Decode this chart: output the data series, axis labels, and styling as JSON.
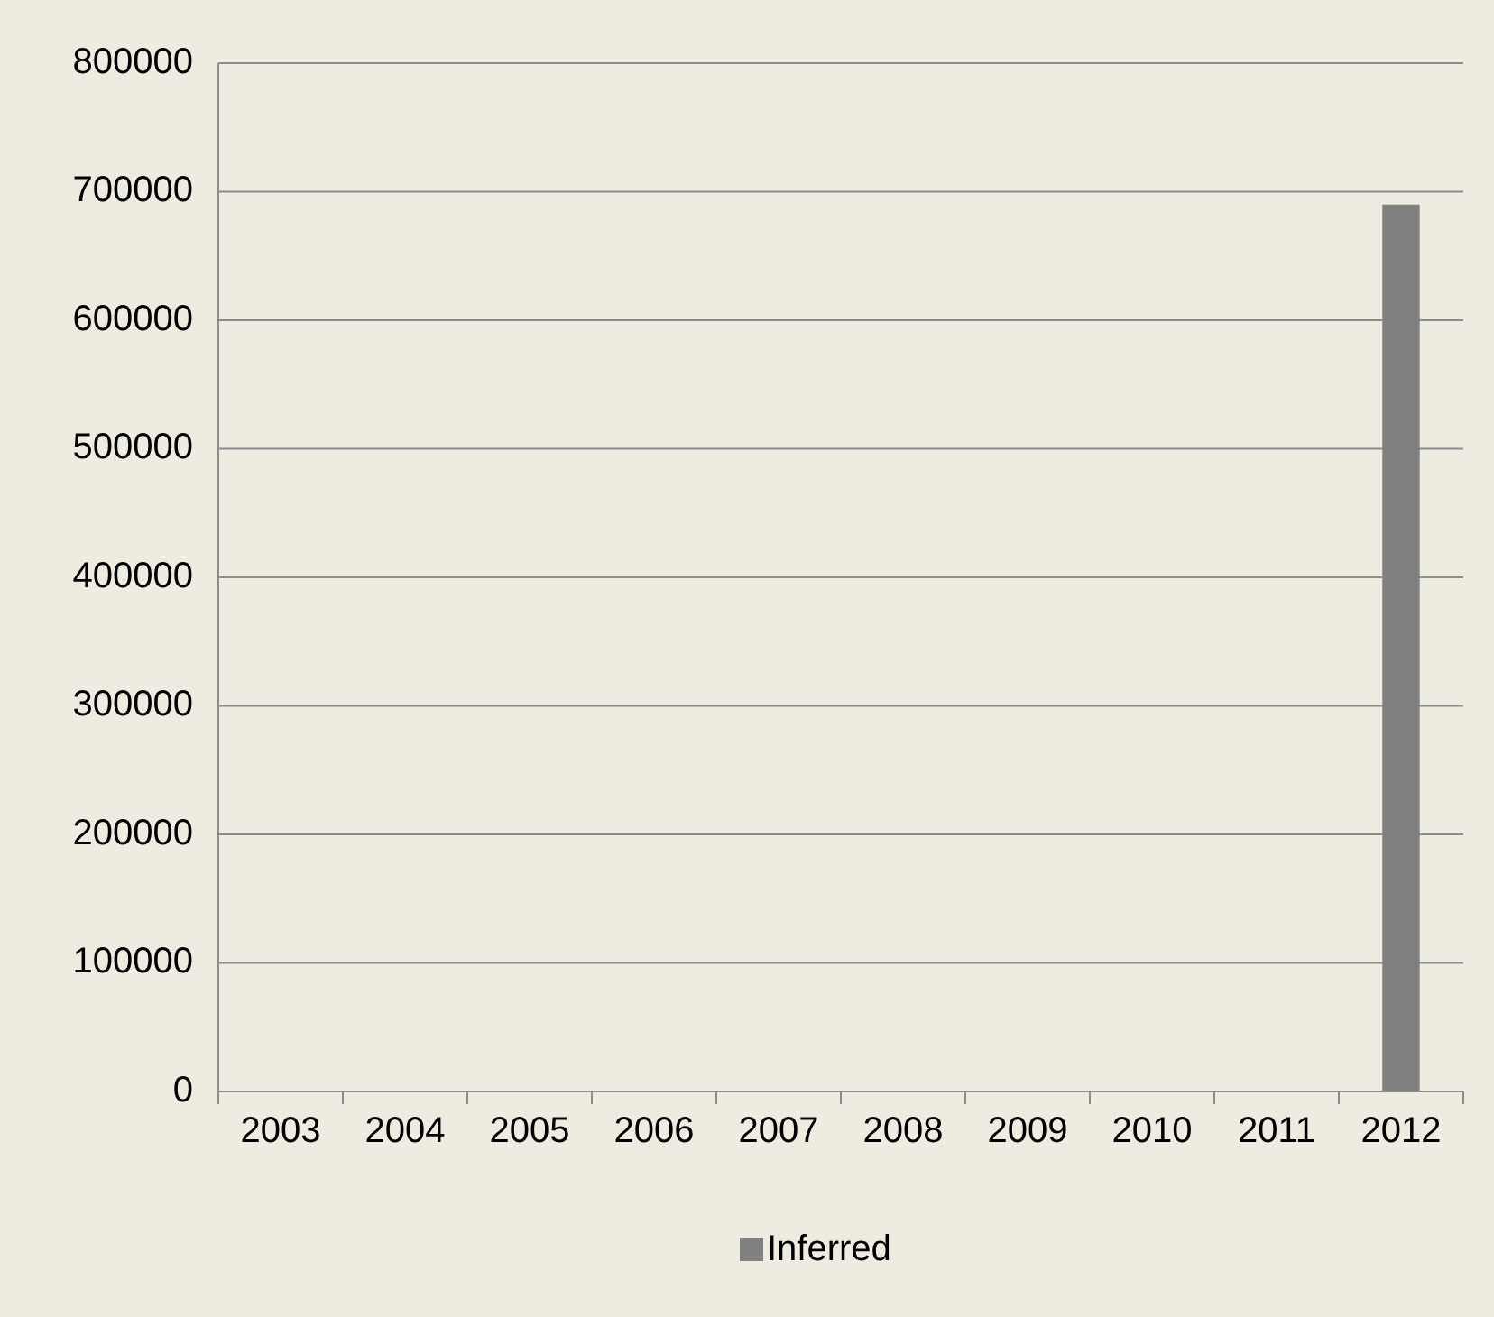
{
  "chart_data": {
    "type": "bar",
    "categories": [
      "2003",
      "2004",
      "2005",
      "2006",
      "2007",
      "2008",
      "2009",
      "2010",
      "2011",
      "2012"
    ],
    "series": [
      {
        "name": "Inferred",
        "color": "#808080",
        "values": [
          null,
          null,
          null,
          null,
          null,
          null,
          null,
          null,
          null,
          690000
        ]
      }
    ],
    "ylim": [
      0,
      800000
    ],
    "yticks": [
      0,
      100000,
      200000,
      300000,
      400000,
      500000,
      600000,
      700000,
      800000
    ],
    "grid": "y",
    "legend": "bottom"
  }
}
